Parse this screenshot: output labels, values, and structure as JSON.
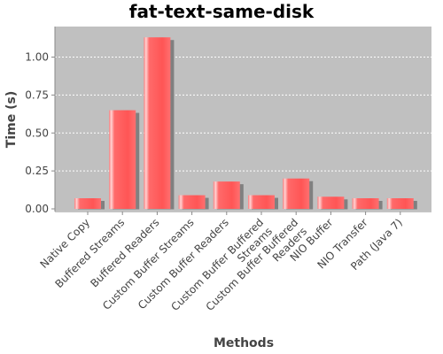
{
  "chart_data": {
    "type": "bar",
    "title": "fat-text-same-disk",
    "xlabel": "Methods",
    "ylabel": "Time (s)",
    "ylim": [
      0,
      1.2
    ],
    "yticks": [
      "0.00",
      "0.25",
      "0.50",
      "0.75",
      "1.00"
    ],
    "grid": true,
    "categories": [
      [
        "Native Copy"
      ],
      [
        "Buffered Streams"
      ],
      [
        "Buffered Readers"
      ],
      [
        "Custom Buffer Streams"
      ],
      [
        "Custom Buffer Readers"
      ],
      [
        "Custom Buffer Buffered",
        "Streams"
      ],
      [
        "Custom Buffer Buffered",
        "Readers"
      ],
      [
        "NIO Buffer"
      ],
      [
        "NIO Transfer"
      ],
      [
        "Path (Java 7)"
      ]
    ],
    "values": [
      0.07,
      0.65,
      1.13,
      0.09,
      0.18,
      0.09,
      0.2,
      0.08,
      0.07,
      0.07
    ],
    "colors": {
      "plot_background": "#c0c0c0",
      "bar": "#ff5c5c",
      "bar_highlight": "#ffd0d0",
      "bar_shadow": "#808080",
      "gridline": "#ffffff"
    }
  }
}
